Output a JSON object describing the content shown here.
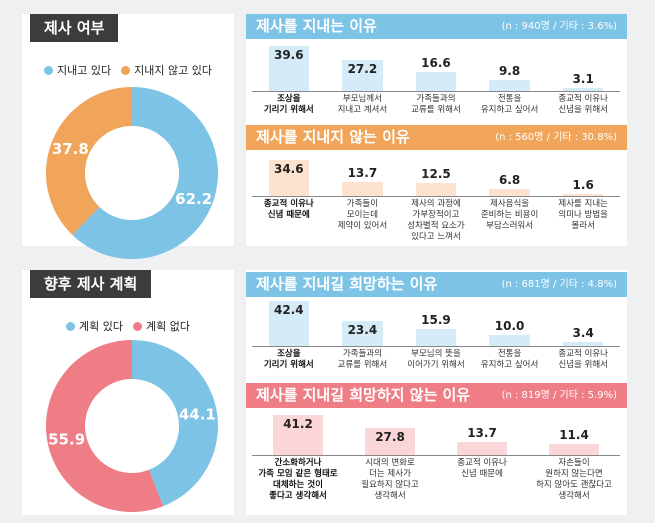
{
  "colors": {
    "blue": "#7dc3e6",
    "orange": "#f0a55a",
    "pink": "#ef7d86",
    "lightblue": "#d5ebf7",
    "lightorange": "#fde3cf",
    "lightpink": "#fbd6d8"
  },
  "section1": {
    "tag": "제사 여부",
    "legend": [
      {
        "label": "지내고 있다",
        "color": "#7dc3e6"
      },
      {
        "label": "지내지 않고 있다",
        "color": "#f0a55a"
      }
    ]
  },
  "section2": {
    "tag": "향후 제사 계획",
    "legend": [
      {
        "label": "계획 있다",
        "color": "#7dc3e6"
      },
      {
        "label": "계획 없다",
        "color": "#ef7d86"
      }
    ]
  },
  "banners": {
    "b1": {
      "title": "제사를 지내는 이유",
      "note": "(n : 940명 / 기타 : 3.6%)"
    },
    "b2": {
      "title": "제사를 지내지 않는 이유",
      "note": "(n : 560명 / 기타 : 30.8%)"
    },
    "b3": {
      "title": "제사를 지내길 희망하는 이유",
      "note": "(n : 681명 / 기타 : 4.8%)"
    },
    "b4": {
      "title": "제사를 지내길 희망하지 않는 이유",
      "note": "(n : 819명 / 기타 : 5.9%)"
    }
  },
  "chart_data": [
    {
      "type": "pie",
      "title": "제사 여부",
      "categories": [
        "지내고 있다",
        "지내지 않고 있다"
      ],
      "values": [
        62.2,
        37.8
      ],
      "colors": [
        "#7dc3e6",
        "#f0a55a"
      ]
    },
    {
      "type": "bar",
      "title": "제사를 지내는 이유",
      "categories": [
        "조상을\n기리기 위해서",
        "부모님께서\n지내고 계셔서",
        "가족들과의\n교류를 위해서",
        "전통을\n유지하고 싶어서",
        "종교적 이유나\n신념을 위해서"
      ],
      "values": [
        39.6,
        27.2,
        16.6,
        9.8,
        3.1
      ]
    },
    {
      "type": "bar",
      "title": "제사를 지내지 않는 이유",
      "categories": [
        "종교적 이유나\n신념 때문에",
        "가족들이\n모이는데\n제약이 있어서",
        "제사의 과정에\n가부장적이고\n성차별적 요소가\n있다고 느껴서",
        "제사음식을\n준비하는 비용이\n부담스러워서",
        "제사를 지내는\n의미나 방법을\n몰라서"
      ],
      "values": [
        34.6,
        13.7,
        12.5,
        6.8,
        1.6
      ]
    },
    {
      "type": "pie",
      "title": "향후 제사 계획",
      "categories": [
        "계획 있다",
        "계획 없다"
      ],
      "values": [
        44.1,
        55.9
      ],
      "colors": [
        "#7dc3e6",
        "#ef7d86"
      ]
    },
    {
      "type": "bar",
      "title": "제사를 지내길 희망하는 이유",
      "categories": [
        "조상을\n기리기 위해서",
        "가족들과의\n교류를 위해서",
        "부모님의 뜻을\n이어가기 위해서",
        "전통을\n유지하고 싶어서",
        "종교적 이유나\n신념을 위해서"
      ],
      "values": [
        42.4,
        23.4,
        15.9,
        10.0,
        3.4
      ]
    },
    {
      "type": "bar",
      "title": "제사를 지내길 희망하지 않는 이유",
      "categories": [
        "간소화하거나\n가족 모임 같은 형태로\n대체하는 것이\n좋다고 생각해서",
        "시대의 변화로\n더는 제사가\n필요하지 않다고\n생각해서",
        "종교적 이유나\n신념 때문에",
        "자손들이\n원하지 않는다면\n하지 않아도 괜찮다고\n생각해서"
      ],
      "values": [
        41.2,
        27.8,
        13.7,
        11.4
      ]
    }
  ]
}
